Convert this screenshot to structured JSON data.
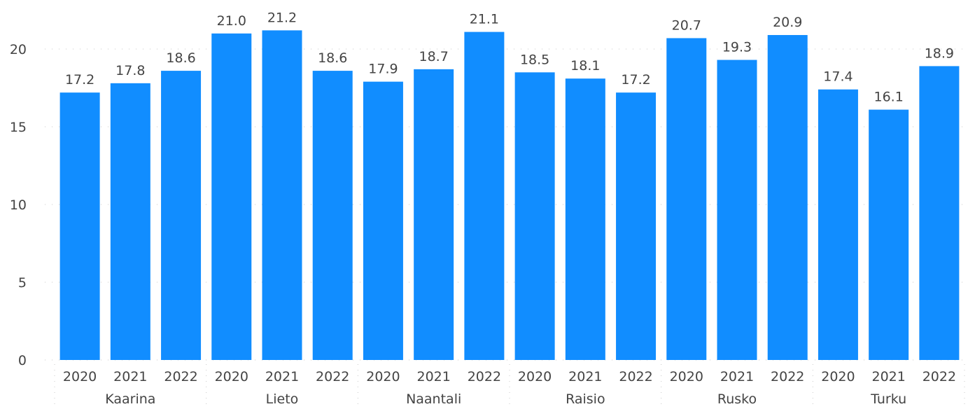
{
  "chart_data": {
    "type": "bar",
    "groups": [
      "Kaarina",
      "Lieto",
      "Naantali",
      "Raisio",
      "Rusko",
      "Turku"
    ],
    "years": [
      "2020",
      "2021",
      "2022"
    ],
    "bars": [
      {
        "group": "Kaarina",
        "year": "2020",
        "value": 17.2,
        "label": "17.2"
      },
      {
        "group": "Kaarina",
        "year": "2021",
        "value": 17.8,
        "label": "17.8"
      },
      {
        "group": "Kaarina",
        "year": "2022",
        "value": 18.6,
        "label": "18.6"
      },
      {
        "group": "Lieto",
        "year": "2020",
        "value": 21.0,
        "label": "21.0"
      },
      {
        "group": "Lieto",
        "year": "2021",
        "value": 21.2,
        "label": "21.2"
      },
      {
        "group": "Lieto",
        "year": "2022",
        "value": 18.6,
        "label": "18.6"
      },
      {
        "group": "Naantali",
        "year": "2020",
        "value": 17.9,
        "label": "17.9"
      },
      {
        "group": "Naantali",
        "year": "2021",
        "value": 18.7,
        "label": "18.7"
      },
      {
        "group": "Naantali",
        "year": "2022",
        "value": 21.1,
        "label": "21.1"
      },
      {
        "group": "Raisio",
        "year": "2020",
        "value": 18.5,
        "label": "18.5"
      },
      {
        "group": "Raisio",
        "year": "2021",
        "value": 18.1,
        "label": "18.1"
      },
      {
        "group": "Raisio",
        "year": "2022",
        "value": 17.2,
        "label": "17.2"
      },
      {
        "group": "Rusko",
        "year": "2020",
        "value": 20.7,
        "label": "20.7"
      },
      {
        "group": "Rusko",
        "year": "2021",
        "value": 19.3,
        "label": "19.3"
      },
      {
        "group": "Rusko",
        "year": "2022",
        "value": 20.9,
        "label": "20.9"
      },
      {
        "group": "Turku",
        "year": "2020",
        "value": 17.4,
        "label": "17.4"
      },
      {
        "group": "Turku",
        "year": "2021",
        "value": 16.1,
        "label": "16.1"
      },
      {
        "group": "Turku",
        "year": "2022",
        "value": 18.9,
        "label": "18.9"
      }
    ],
    "yticks": [
      0,
      5,
      10,
      15,
      20
    ],
    "ylim": [
      0,
      22.8
    ],
    "grid": true,
    "legend": "none",
    "bar_color": "#118DFF",
    "title": "",
    "xlabel": "",
    "ylabel": ""
  }
}
